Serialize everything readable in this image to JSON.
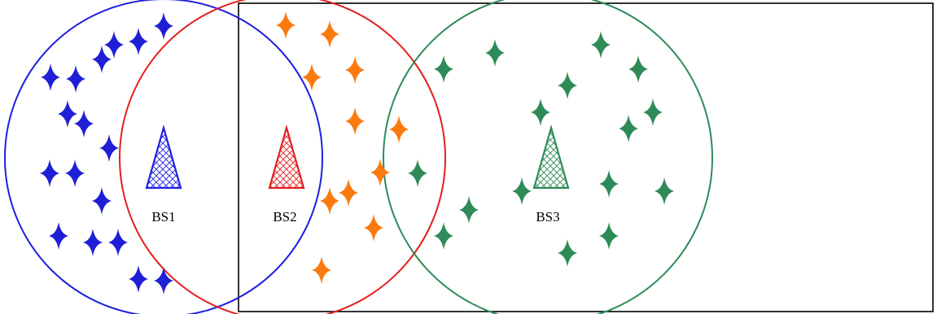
{
  "colors": {
    "bs1": "#1f1fe0",
    "bs2": "#e41e1e",
    "bs3": "#2e8b57",
    "users_bs1": "#1f1fd6",
    "users_bs2": "#fb7a10",
    "users_bs3": "#2e8b57",
    "frame": "#000000"
  },
  "base_stations": [
    {
      "id": "bs1",
      "label": "BS1",
      "icon": "cell-tower-icon"
    },
    {
      "id": "bs2",
      "label": "BS2",
      "icon": "cell-tower-icon"
    },
    {
      "id": "bs3",
      "label": "BS3",
      "icon": "cell-tower-icon"
    }
  ],
  "user_icon": "four-point-star-icon"
}
